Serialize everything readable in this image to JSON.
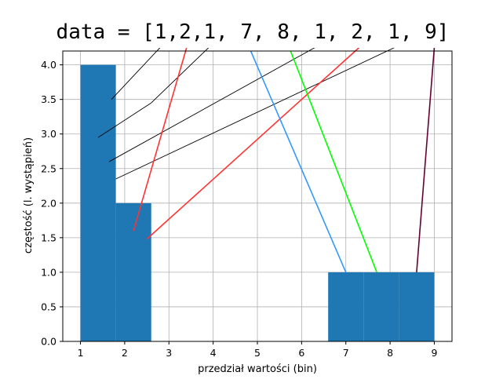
{
  "chart_data": {
    "type": "bar",
    "title": "data = [1,2,1, 7, 8, 1, 2, 1, 9]",
    "xlabel": "przedział wartości (bin)",
    "ylabel": "częstość (l. wystąpień)",
    "xlim": [
      0.6,
      9.4
    ],
    "ylim": [
      0,
      4.2
    ],
    "grid": true,
    "xticks": [
      1,
      2,
      3,
      4,
      5,
      6,
      7,
      8,
      9
    ],
    "yticks": [
      0.0,
      0.5,
      1.0,
      1.5,
      2.0,
      2.5,
      3.0,
      3.5,
      4.0
    ],
    "bar_color": "#1f77b4",
    "bins": [
      {
        "x0": 1.0,
        "x1": 1.8,
        "count": 4
      },
      {
        "x0": 1.8,
        "x1": 2.6,
        "count": 2
      },
      {
        "x0": 6.6,
        "x1": 7.4,
        "count": 1
      },
      {
        "x0": 7.4,
        "x1": 8.2,
        "count": 1
      },
      {
        "x0": 8.2,
        "x1": 9.0,
        "count": 1
      }
    ],
    "annotation_lines": [
      {
        "from": [
          1.7,
          3.5
        ],
        "to": [
          2.8,
          4.25
        ],
        "color": "#000000",
        "width": 0.9
      },
      {
        "from": [
          1.4,
          2.95
        ],
        "to": [
          2.6,
          3.45
        ],
        "color": "#000000",
        "width": 0.9
      },
      {
        "from": [
          2.6,
          3.45
        ],
        "to": [
          3.9,
          4.25
        ],
        "color": "#000000",
        "width": 0.9
      },
      {
        "from": [
          1.65,
          2.6
        ],
        "to": [
          6.3,
          4.25
        ],
        "color": "#000000",
        "width": 0.9
      },
      {
        "from": [
          1.8,
          2.35
        ],
        "to": [
          8.1,
          4.25
        ],
        "color": "#000000",
        "width": 0.9
      },
      {
        "from": [
          2.2,
          1.6
        ],
        "to": [
          3.4,
          4.25
        ],
        "color": "#ff3333",
        "width": 1.6
      },
      {
        "from": [
          2.5,
          1.48
        ],
        "to": [
          7.3,
          4.25
        ],
        "color": "#ff3333",
        "width": 1.6
      },
      {
        "from": [
          4.85,
          4.2
        ],
        "to": [
          7.0,
          1.0
        ],
        "color": "#3399ff",
        "width": 1.6
      },
      {
        "from": [
          5.75,
          4.2
        ],
        "to": [
          7.7,
          1.0
        ],
        "color": "#00ff00",
        "width": 1.6
      },
      {
        "from": [
          9.0,
          4.25
        ],
        "to": [
          8.6,
          1.0
        ],
        "color": "#660033",
        "width": 1.6
      }
    ]
  }
}
